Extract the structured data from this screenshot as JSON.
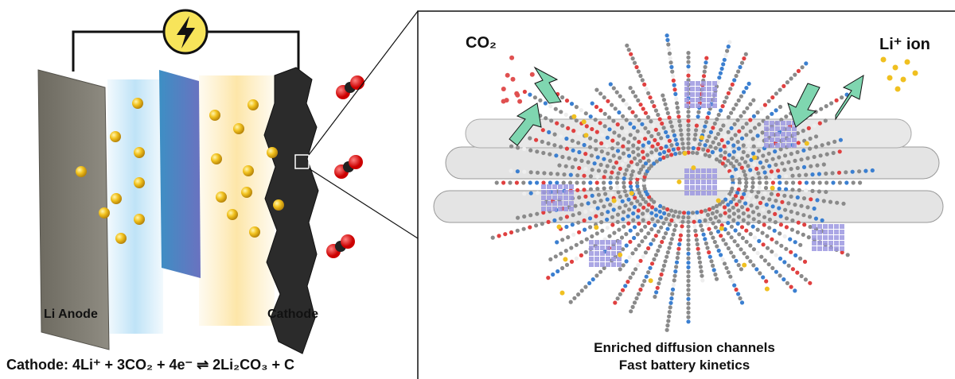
{
  "left_panel": {
    "anode_label": "Li Anode",
    "cathode_label": "Cathode",
    "equation": "Cathode: 4Li⁺ + 3CO₂ + 4e⁻ ⇌ 2Li₂CO₃ + C"
  },
  "right_panel": {
    "co2_label": "CO₂",
    "li_label": "Li⁺ ion",
    "caption_line1": "Enriched diffusion channels",
    "caption_line2": "Fast battery kinetics"
  }
}
